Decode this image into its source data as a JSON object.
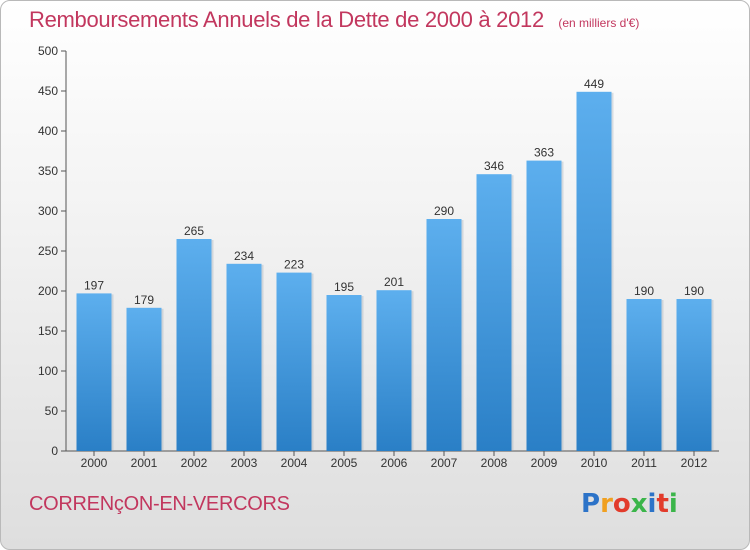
{
  "chart_data": {
    "type": "bar",
    "title": "Remboursements Annuels de la Dette de 2000 à 2012",
    "subtitle": "(en milliers d'€)",
    "categories": [
      "2000",
      "2001",
      "2002",
      "2003",
      "2004",
      "2005",
      "2006",
      "2007",
      "2008",
      "2009",
      "2010",
      "2011",
      "2012"
    ],
    "values": [
      197,
      179,
      265,
      234,
      223,
      195,
      201,
      290,
      346,
      363,
      449,
      190,
      190
    ],
    "ylim": [
      0,
      500
    ],
    "yticks": [
      0,
      50,
      100,
      150,
      200,
      250,
      300,
      350,
      400,
      450,
      500
    ],
    "grid": false,
    "data_labels": true,
    "bar_color": "#3d8fd6"
  },
  "footer": {
    "location": "CORRENçON-EN-VERCORS"
  },
  "logo": {
    "text": "Proxiti",
    "letter_colors": [
      "#2c73c8",
      "#f0a020",
      "#e23b2b",
      "#3bb54a",
      "#2c73c8",
      "#e23b2b",
      "#3bb54a"
    ]
  }
}
